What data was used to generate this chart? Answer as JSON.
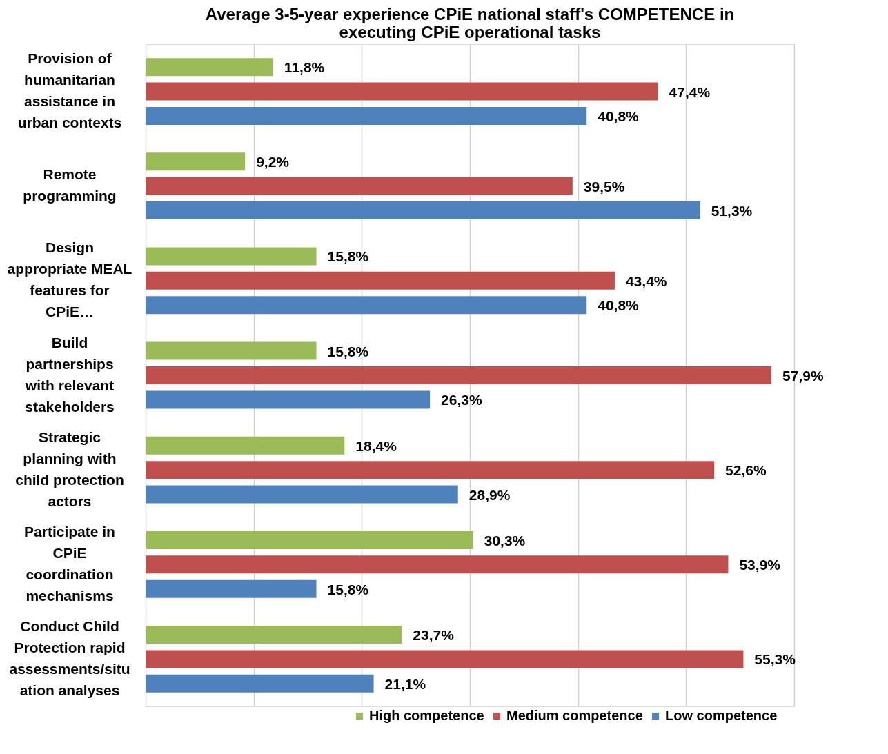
{
  "chart_data": {
    "type": "bar",
    "orientation": "horizontal",
    "title": "Average 3-5-year experience CPiE national staff's COMPETENCE in executing CPiE operational tasks",
    "categories": [
      "Provision of humanitarian assistance in urban contexts",
      "Remote programming",
      "Design appropriate MEAL features for CPiE…",
      "Build partnerships with relevant stakeholders",
      "Strategic planning with child protection actors",
      "Participate in CPiE coordination mechanisms",
      "Conduct Child Protection rapid assessments/situation analyses"
    ],
    "series": [
      {
        "name": "High competence",
        "color": "#9bbb59",
        "values": [
          11.8,
          9.2,
          15.8,
          15.8,
          18.4,
          30.3,
          23.7
        ],
        "value_labels": [
          "11,8%",
          "9,2%",
          "15,8%",
          "15,8%",
          "18,4%",
          "30,3%",
          "23,7%"
        ]
      },
      {
        "name": "Medium competence",
        "color": "#c0504d",
        "values": [
          47.4,
          39.5,
          43.4,
          57.9,
          52.6,
          53.9,
          55.3
        ],
        "value_labels": [
          "47,4%",
          "39,5%",
          "43,4%",
          "57,9%",
          "52,6%",
          "53,9%",
          "55,3%"
        ]
      },
      {
        "name": "Low competence",
        "color": "#4f81bd",
        "values": [
          40.8,
          51.3,
          40.8,
          26.3,
          28.9,
          15.8,
          21.1
        ],
        "value_labels": [
          "40,8%",
          "51,3%",
          "40,8%",
          "26,3%",
          "28,9%",
          "15,8%",
          "21,1%"
        ]
      }
    ],
    "xlim": [
      0,
      60
    ],
    "xticks": [
      {
        "value": 0,
        "label": null
      },
      {
        "value": 10,
        "label": null
      },
      {
        "value": 20,
        "label": null
      },
      {
        "value": 30,
        "label": null
      },
      {
        "value": 40,
        "label": null
      },
      {
        "value": 50,
        "label": null
      },
      {
        "value": 60,
        "label": null
      }
    ],
    "tick_labels": "y",
    "grid": "x",
    "legend": "bottom right"
  }
}
